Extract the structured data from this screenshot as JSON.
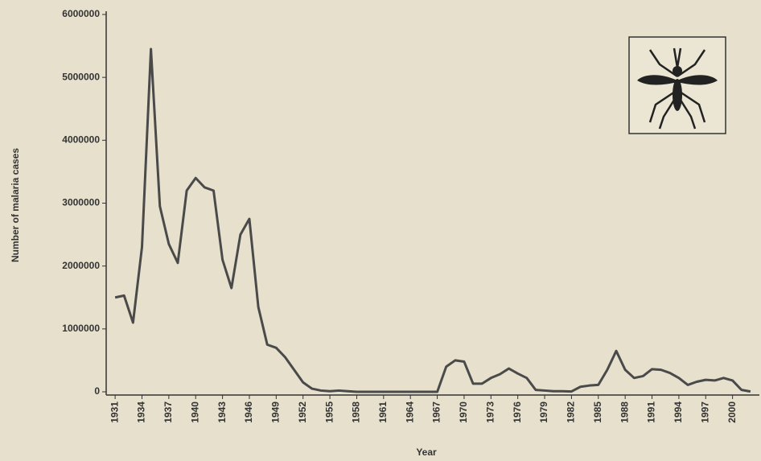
{
  "chart_data": {
    "type": "line",
    "x_label": "Year",
    "y_label": "Number of malaria cases",
    "x": [
      1931,
      1932,
      1933,
      1934,
      1935,
      1936,
      1937,
      1938,
      1939,
      1940,
      1941,
      1942,
      1943,
      1944,
      1945,
      1946,
      1947,
      1948,
      1949,
      1950,
      1951,
      1952,
      1953,
      1954,
      1955,
      1956,
      1957,
      1958,
      1959,
      1960,
      1961,
      1962,
      1963,
      1964,
      1965,
      1966,
      1967,
      1968,
      1969,
      1970,
      1971,
      1972,
      1973,
      1974,
      1975,
      1976,
      1977,
      1978,
      1979,
      1980,
      1981,
      1982,
      1983,
      1984,
      1985,
      1986,
      1987,
      1988,
      1989,
      1990,
      1991,
      1992,
      1993,
      1994,
      1995,
      1996,
      1997,
      1998,
      1999,
      2000,
      2001,
      2002
    ],
    "series": [
      {
        "color": "#4a4a4a",
        "values": [
          1500000,
          1530000,
          1100000,
          2300000,
          5450000,
          2950000,
          2350000,
          2050000,
          3200000,
          3400000,
          3250000,
          3200000,
          2100000,
          1650000,
          2500000,
          2750000,
          1350000,
          750000,
          700000,
          550000,
          350000,
          150000,
          50000,
          20000,
          10000,
          20000,
          10000,
          0,
          0,
          0,
          0,
          0,
          0,
          0,
          0,
          0,
          0,
          400000,
          500000,
          480000,
          130000,
          130000,
          220000,
          280000,
          370000,
          290000,
          220000,
          30000,
          20000,
          10000,
          10000,
          5000,
          80000,
          100000,
          110000,
          350000,
          650000,
          350000,
          220000,
          250000,
          360000,
          350000,
          300000,
          220000,
          110000,
          160000,
          190000,
          180000,
          220000,
          180000,
          30000,
          5000
        ]
      }
    ],
    "xlim": [
      1930,
      2003
    ],
    "ylim": [
      0,
      6000000
    ],
    "xticks": [
      1931,
      1934,
      1937,
      1940,
      1943,
      1946,
      1949,
      1952,
      1955,
      1958,
      1961,
      1964,
      1967,
      1970,
      1973,
      1976,
      1979,
      1982,
      1985,
      1988,
      1991,
      1994,
      1997,
      2000
    ],
    "yticks": [
      0,
      1000000,
      2000000,
      3000000,
      4000000,
      5000000,
      6000000
    ],
    "grid": false
  }
}
